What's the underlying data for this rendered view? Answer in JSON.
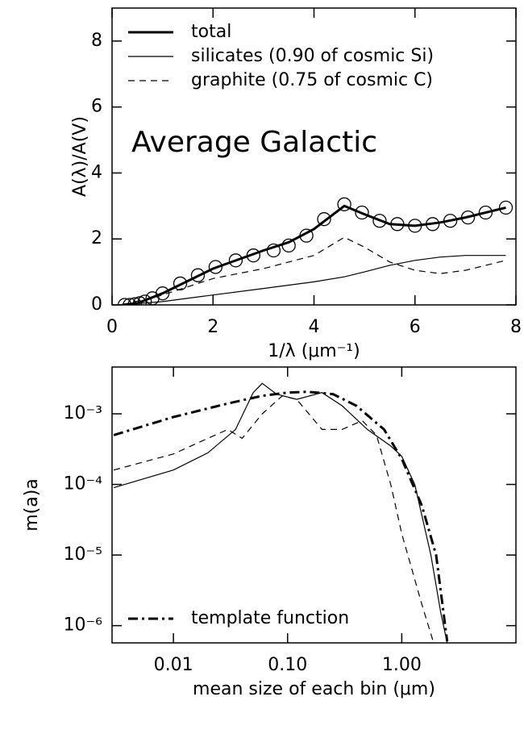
{
  "chart_data": [
    {
      "type": "line",
      "xlabel": "1/λ (μm⁻¹)",
      "ylabel": "A(λ)/A(V)",
      "annotation": "Average Galactic",
      "xlim": [
        0,
        8
      ],
      "xticks": [
        0,
        2,
        4,
        6,
        8
      ],
      "ylim": [
        0,
        9
      ],
      "yticks": [
        0,
        2,
        4,
        6,
        8
      ],
      "legend": "upper left",
      "series": [
        {
          "name": "total",
          "color": "#000000",
          "style": "solid",
          "width": 3,
          "x": [
            0.2,
            0.5,
            1,
            2,
            3,
            3.5,
            4,
            4.6,
            5,
            5.5,
            6,
            6.5,
            7,
            7.8
          ],
          "values": [
            0,
            0.05,
            0.35,
            1.1,
            1.65,
            1.9,
            2.3,
            3.0,
            2.75,
            2.45,
            2.4,
            2.5,
            2.65,
            2.95
          ]
        },
        {
          "name": "silicates (0.90 of cosmic Si)",
          "color": "#000000",
          "style": "solid",
          "width": 1.2,
          "x": [
            0.2,
            1,
            2,
            3,
            4,
            4.6,
            5,
            5.5,
            6,
            6.5,
            7,
            7.8
          ],
          "values": [
            0,
            0.1,
            0.3,
            0.5,
            0.7,
            0.85,
            1.0,
            1.2,
            1.35,
            1.45,
            1.5,
            1.5
          ]
        },
        {
          "name": "graphite (0.75 of cosmic C)",
          "color": "#000000",
          "style": "dashed",
          "width": 1.2,
          "x": [
            0.2,
            1,
            2,
            3,
            3.5,
            4,
            4.6,
            5,
            5.5,
            6,
            6.5,
            7,
            7.8
          ],
          "values": [
            0,
            0.3,
            0.8,
            1.1,
            1.3,
            1.5,
            2.05,
            1.75,
            1.3,
            1.05,
            0.95,
            1.05,
            1.35
          ]
        },
        {
          "color": "#000000",
          "style": "markers",
          "x": [
            0.25,
            0.35,
            0.45,
            0.55,
            0.65,
            0.8,
            1.0,
            1.35,
            1.7,
            2.05,
            2.45,
            2.8,
            3.2,
            3.5,
            3.85,
            4.2,
            4.6,
            4.95,
            5.3,
            5.65,
            6.0,
            6.35,
            6.7,
            7.05,
            7.4,
            7.8
          ],
          "values": [
            0,
            0,
            0.02,
            0.05,
            0.1,
            0.2,
            0.35,
            0.65,
            0.9,
            1.15,
            1.35,
            1.5,
            1.65,
            1.8,
            2.1,
            2.6,
            3.05,
            2.8,
            2.55,
            2.45,
            2.4,
            2.45,
            2.55,
            2.65,
            2.8,
            2.95
          ]
        }
      ]
    },
    {
      "type": "line",
      "xlabel": "mean size of each bin (μm)",
      "ylabel": "m(a)a",
      "xlog": true,
      "ylog": true,
      "xlim": [
        0.0029,
        10
      ],
      "xticks": [
        {
          "value": 0.01,
          "label": "0.01"
        },
        {
          "value": 0.1,
          "label": "0.10"
        },
        {
          "value": 1,
          "label": "1.00"
        }
      ],
      "ylim": [
        5.7e-07,
        0.0046
      ],
      "yticks": [
        {
          "value": 0.001,
          "label": "10⁻³"
        },
        {
          "value": 0.0001,
          "label": "10⁻⁴"
        },
        {
          "value": 1e-05,
          "label": "10⁻⁵"
        },
        {
          "value": 1e-06,
          "label": "10⁻⁶"
        }
      ],
      "legend": "lower left",
      "series": [
        {
          "name": "template function",
          "color": "#000000",
          "style": "dashdot",
          "width": 3,
          "x": [
            0.003,
            0.01,
            0.03,
            0.06,
            0.1,
            0.15,
            0.25,
            0.4,
            0.7,
            1.0,
            1.5,
            2.0,
            2.5
          ],
          "values": [
            0.0005,
            0.0009,
            0.0014,
            0.0018,
            0.002,
            0.00205,
            0.0019,
            0.0013,
            0.0006,
            0.00023,
            5e-05,
            1e-05,
            6e-07
          ]
        },
        {
          "color": "#000000",
          "style": "solid",
          "width": 1.2,
          "x": [
            0.003,
            0.01,
            0.02,
            0.035,
            0.05,
            0.06,
            0.08,
            0.12,
            0.2,
            0.3,
            0.5,
            0.8,
            1.0,
            1.3,
            1.8,
            2.2,
            2.5
          ],
          "values": [
            9e-05,
            0.00016,
            0.00028,
            0.0006,
            0.002,
            0.0027,
            0.0019,
            0.0016,
            0.002,
            0.0013,
            0.0006,
            0.00035,
            0.00025,
            0.0001,
            1e-05,
            1.5e-06,
            5.7e-07
          ]
        },
        {
          "color": "#000000",
          "style": "dashed",
          "width": 1.2,
          "x": [
            0.003,
            0.01,
            0.02,
            0.03,
            0.04,
            0.06,
            0.09,
            0.12,
            0.2,
            0.3,
            0.45,
            0.6,
            0.8,
            1.0,
            1.5,
            1.9
          ],
          "values": [
            0.00016,
            0.00027,
            0.00045,
            0.0006,
            0.00045,
            0.001,
            0.0018,
            0.0016,
            0.0006,
            0.0006,
            0.0008,
            0.0005,
            0.0001,
            2e-05,
            2e-06,
            5.7e-07
          ]
        }
      ]
    }
  ]
}
